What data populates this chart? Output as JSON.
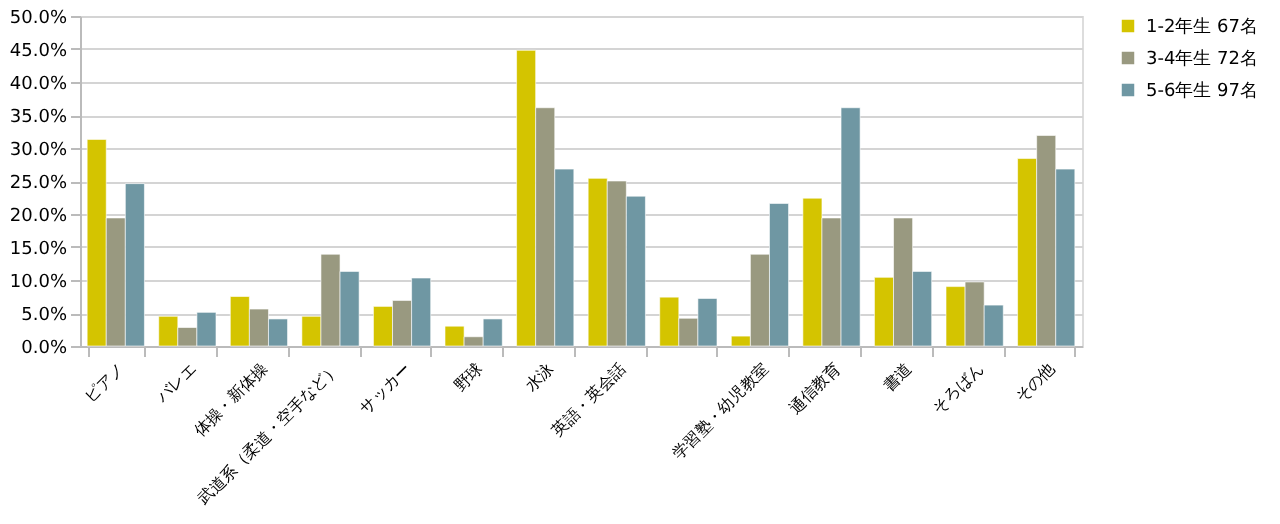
{
  "chart_data": {
    "type": "bar",
    "categories": [
      "ピアノ",
      "バレエ",
      "体操・新体操",
      "武道系（柔道・空手など）",
      "サッカー",
      "野球",
      "水泳",
      "英語・英会話",
      null,
      "学習塾・幼児教室",
      "通信教育",
      "書道",
      "そろばん",
      "その他"
    ],
    "series": [
      {
        "name": "1-2年生  67名",
        "color": "#d4c400",
        "values": [
          31.3,
          4.5,
          7.5,
          4.5,
          6.0,
          3.0,
          44.8,
          25.4,
          7.4,
          1.5,
          22.4,
          10.4,
          9.0,
          28.4
        ]
      },
      {
        "name": "3-4年生  72名",
        "color": "#999980",
        "values": [
          19.4,
          2.8,
          5.6,
          13.9,
          6.9,
          1.4,
          36.1,
          25.0,
          4.2,
          13.9,
          19.4,
          19.4,
          9.7,
          31.9
        ]
      },
      {
        "name": "5-6年生  97名",
        "color": "#6f97a3",
        "values": [
          24.6,
          5.1,
          4.1,
          11.3,
          10.3,
          4.1,
          26.8,
          22.7,
          7.2,
          21.6,
          36.1,
          11.3,
          6.2,
          26.8
        ]
      }
    ],
    "ylim": [
      0,
      50
    ],
    "yticks": [
      {
        "value": 0,
        "label": "0.0%"
      },
      {
        "value": 5,
        "label": "5.0%"
      },
      {
        "value": 10,
        "label": "10.0%"
      },
      {
        "value": 15,
        "label": "15.0%"
      },
      {
        "value": 20,
        "label": "20.0%"
      },
      {
        "value": 25,
        "label": "25.0%"
      },
      {
        "value": 30,
        "label": "30.0%"
      },
      {
        "value": 35,
        "label": "35.0%"
      },
      {
        "value": 40,
        "label": "40.0%"
      },
      {
        "value": 45,
        "label": "45.0%"
      },
      {
        "value": 50,
        "label": "50.0%"
      }
    ],
    "grid": "y",
    "legend": "right"
  }
}
